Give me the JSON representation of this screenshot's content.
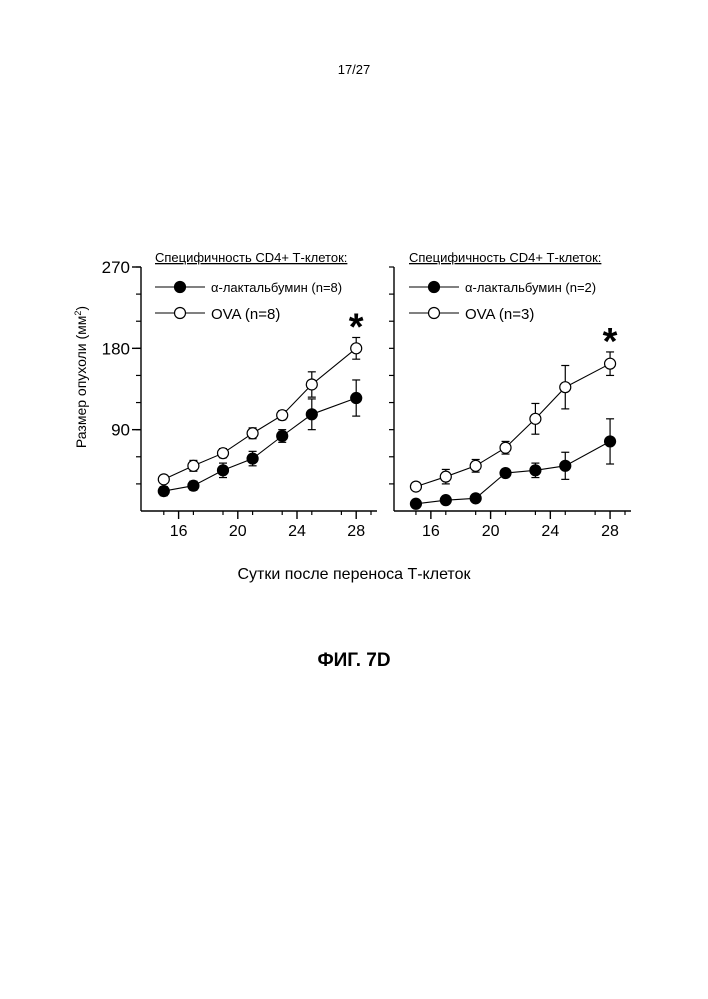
{
  "page": {
    "number": "17/27"
  },
  "figure": {
    "x_axis_caption": "Сутки после переноса Т-клеток",
    "caption": "ФИГ. 7D"
  },
  "chart_data": [
    {
      "type": "line",
      "panel": "left",
      "legend_title": "Специфичность CD4+ Т-клеток:",
      "ylabel": "Размер опухоли (мм²)",
      "ylabel_text": "Размер опухоли (мм",
      "ylabel_sup": "2",
      "ylabel_close": ")",
      "ylim": [
        0,
        270
      ],
      "y_ticks": [
        90,
        180,
        270
      ],
      "y_tick_labels": [
        "90",
        "180",
        "270"
      ],
      "xlim": [
        14,
        29
      ],
      "x_ticks": [
        16,
        20,
        24,
        28
      ],
      "x_tick_labels": [
        "16",
        "20",
        "24",
        "28"
      ],
      "significance": "*",
      "series": [
        {
          "name": "α-лактальбумин (n=8)",
          "marker": "filled",
          "x": [
            15,
            17,
            19,
            21,
            23,
            25,
            28
          ],
          "y": [
            22,
            28,
            45,
            58,
            83,
            107,
            125
          ],
          "err": [
            5,
            5,
            8,
            8,
            7,
            17,
            20
          ]
        },
        {
          "name": "OVA (n=8)",
          "marker": "open",
          "x": [
            15,
            17,
            19,
            21,
            23,
            25,
            28
          ],
          "y": [
            35,
            50,
            64,
            86,
            106,
            140,
            180
          ],
          "err": [
            4,
            6,
            5,
            6,
            5,
            14,
            12
          ]
        }
      ]
    },
    {
      "type": "line",
      "panel": "right",
      "legend_title": "Специфичность CD4+ Т-клеток:",
      "ylim": [
        0,
        270
      ],
      "xlim": [
        14,
        29
      ],
      "x_ticks": [
        16,
        20,
        24,
        28
      ],
      "x_tick_labels": [
        "16",
        "20",
        "24",
        "28"
      ],
      "significance": "*",
      "series": [
        {
          "name": "α-лактальбумин (n=2)",
          "marker": "filled",
          "x": [
            15,
            17,
            19,
            21,
            23,
            25,
            28
          ],
          "y": [
            8,
            12,
            14,
            42,
            45,
            50,
            77
          ],
          "err": [
            3,
            3,
            2,
            2,
            8,
            15,
            25
          ]
        },
        {
          "name": "OVA (n=3)",
          "marker": "open",
          "x": [
            15,
            17,
            19,
            21,
            23,
            25,
            28
          ],
          "y": [
            27,
            38,
            50,
            70,
            102,
            137,
            163
          ],
          "err": [
            4,
            8,
            7,
            7,
            17,
            24,
            13
          ]
        }
      ]
    }
  ]
}
